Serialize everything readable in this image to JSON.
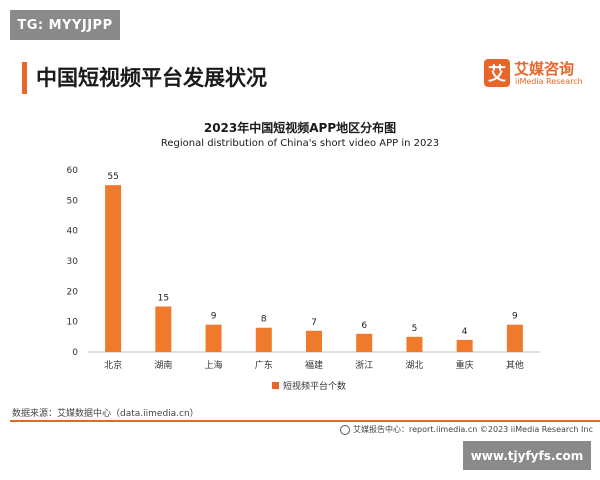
{
  "watermark_top": "TG: MYYJJPP",
  "page_title": "中国短视频平台发展状况",
  "logo": {
    "mark": "艾",
    "name_cn": "艾媒咨询",
    "name_en": "iiMedia Research"
  },
  "colors": {
    "accent": "#e8662a",
    "bar": "#f07a2c",
    "watermark_bg": "#8a8a8a"
  },
  "chart_data": {
    "type": "bar",
    "title": "2023年中国短视频APP地区分布图",
    "subtitle": "Regional distribution of China's short video APP in 2023",
    "categories": [
      "北京",
      "湖南",
      "上海",
      "广东",
      "福建",
      "浙江",
      "湖北",
      "重庆",
      "其他"
    ],
    "series": [
      {
        "name": "短视频平台个数",
        "values": [
          55,
          15,
          9,
          8,
          7,
          6,
          5,
          4,
          9
        ]
      }
    ],
    "ylim": [
      0,
      60
    ],
    "yticks": [
      0,
      10,
      20,
      30,
      40,
      50,
      60
    ],
    "grid": false,
    "data_labels": true,
    "legend_position": "bottom"
  },
  "source_note": "数据来源：艾媒数据中心（data.iimedia.cn）",
  "footer_credit": "艾媒报告中心：report.iimedia.cn ©2023 iiMedia Research Inc",
  "watermark_bottom": "www.tjyfyfs.com"
}
